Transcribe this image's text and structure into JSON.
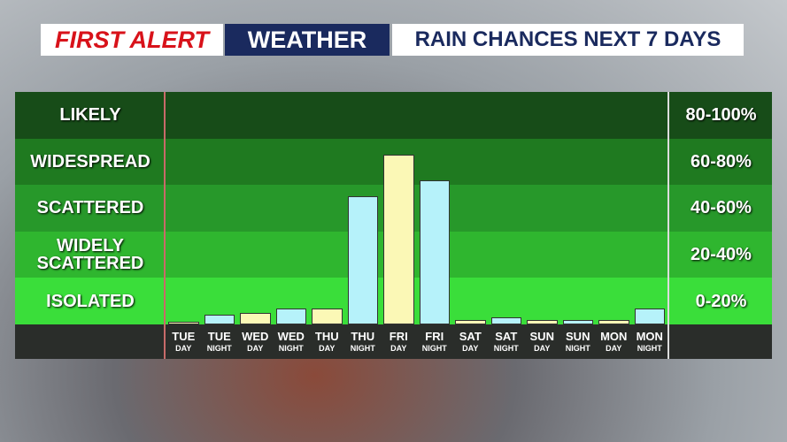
{
  "chart_data": {
    "type": "bar",
    "brand": "FIRST ALERT",
    "brand2": "WEATHER",
    "title": "RAIN CHANCES NEXT 7 DAYS",
    "categories": [
      "TUE",
      "TUE",
      "WED",
      "WED",
      "THU",
      "THU",
      "FRI",
      "FRI",
      "SAT",
      "SAT",
      "SUN",
      "SUN",
      "MON",
      "MON"
    ],
    "periods": [
      "DAY",
      "NIGHT",
      "DAY",
      "NIGHT",
      "DAY",
      "NIGHT",
      "DAY",
      "NIGHT",
      "DAY",
      "NIGHT",
      "DAY",
      "NIGHT",
      "DAY",
      "NIGHT"
    ],
    "values": [
      1,
      4,
      5,
      7,
      7,
      55,
      73,
      62,
      2,
      3,
      2,
      2,
      2,
      7
    ],
    "colors": [
      "#fbf8b6",
      "#b6f2fa",
      "#fbf8b6",
      "#b6f2fa",
      "#fbf8b6",
      "#b6f2fa",
      "#fbf8b6",
      "#b6f2fa",
      "#fbf8b6",
      "#b6f2fa",
      "#fbf8b6",
      "#b6f2fa",
      "#fbf8b6",
      "#b6f2fa"
    ],
    "ylim": [
      0,
      100
    ],
    "bands": [
      {
        "from": 0,
        "to": 20,
        "label": "ISOLATED",
        "range": "0-20%",
        "color": "#3ade3a"
      },
      {
        "from": 20,
        "to": 40,
        "label": "WIDELY SCATTERED",
        "range": "20-40%",
        "color": "#2fb62f"
      },
      {
        "from": 40,
        "to": 60,
        "label": "SCATTERED",
        "range": "40-60%",
        "color": "#27982a"
      },
      {
        "from": 60,
        "to": 80,
        "label": "WIDESPREAD",
        "range": "60-80%",
        "color": "#1f7a20"
      },
      {
        "from": 80,
        "to": 100,
        "label": "LIKELY",
        "range": "80-100%",
        "color": "#174c18"
      }
    ]
  }
}
